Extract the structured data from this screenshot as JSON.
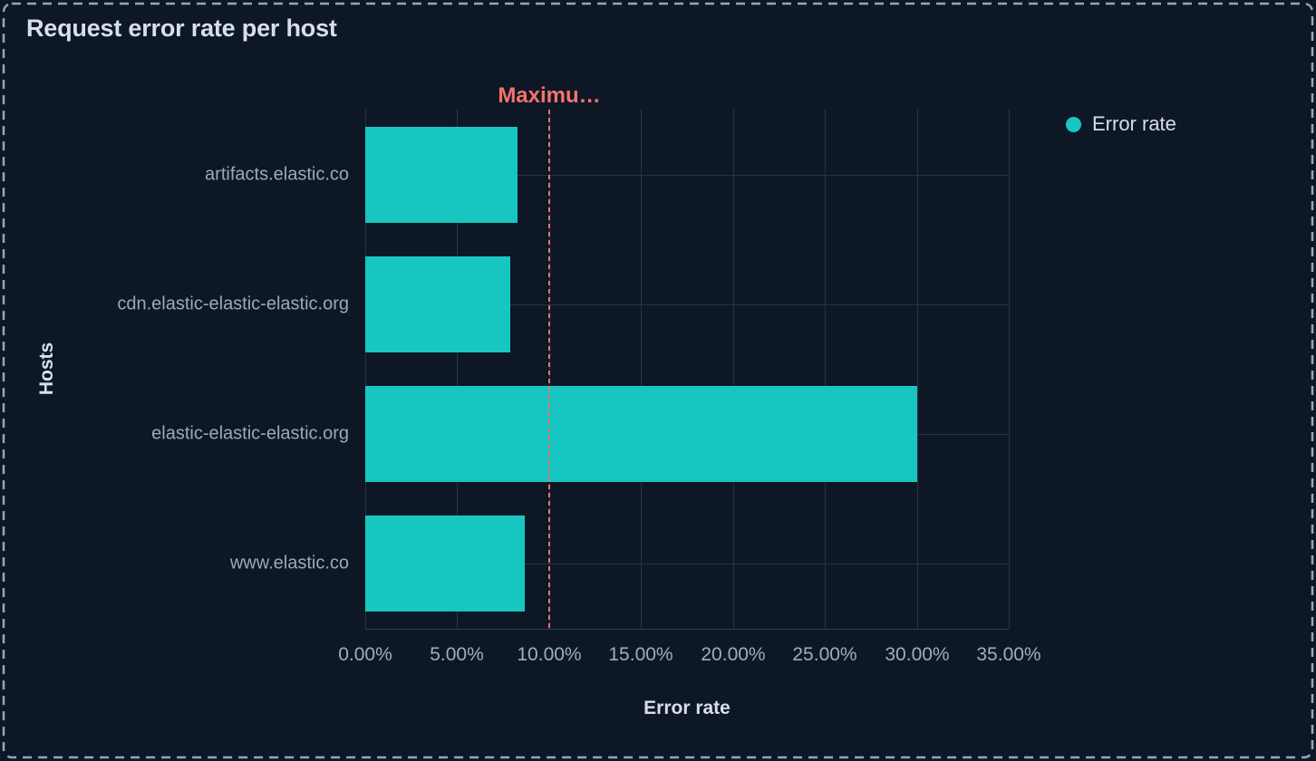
{
  "panel": {
    "title": "Request error rate per host"
  },
  "legend": {
    "position": "top-right",
    "items": [
      {
        "label": "Error rate",
        "swatch_color": "#17C6C1"
      }
    ]
  },
  "colors": {
    "background": "#0D1726",
    "panel_border": "#96A5C0",
    "gridline": "#283349",
    "axisline": "#323E59",
    "bar": "#17C6C1",
    "annotation": "#F6726A",
    "heading_text": "#D8DFE9",
    "muted_text": "#9DA8BB",
    "tick_text": "#A2ACBD"
  },
  "chart_data": {
    "type": "bar",
    "orientation": "horizontal",
    "title": "Request error rate per host",
    "categories": [
      "artifacts.elastic.co",
      "cdn.elastic-elastic-elastic.org",
      "elastic-elastic-elastic.org",
      "www.elastic.co"
    ],
    "series": [
      {
        "name": "Error rate",
        "values": [
          8.3,
          7.9,
          30,
          8.7
        ],
        "unit": "%"
      }
    ],
    "xlabel": "Error rate",
    "ylabel": "Hosts",
    "xlim": [
      0,
      35
    ],
    "x_tick_step": 5,
    "x_tick_labels": [
      "0.00%",
      "5.00%",
      "10.00%",
      "15.00%",
      "20.00%",
      "25.00%",
      "30.00%",
      "35.00%"
    ],
    "grid": true,
    "legend_position": "top-right",
    "annotations": [
      {
        "type": "vline",
        "label": "Maximu…",
        "value": 10,
        "line_style": "dashed",
        "color": "#F6726A"
      }
    ]
  }
}
